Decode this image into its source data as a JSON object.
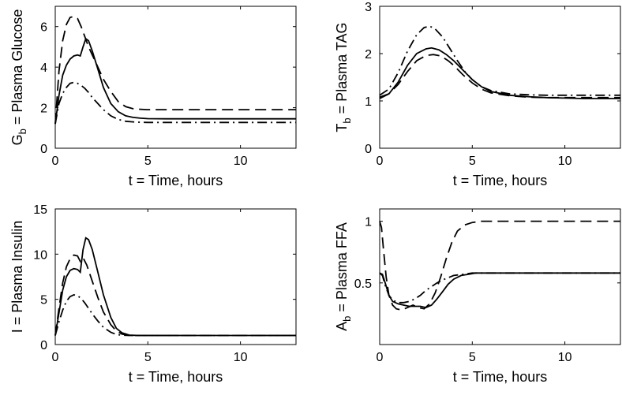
{
  "figure": {
    "description_free": true
  },
  "chart_data": [
    {
      "type": "line",
      "id": "glucose",
      "title": "",
      "xlabel": "t = Time, hours",
      "ylabel": "G",
      "ylabel_sub": "b",
      "ylabel_rest": " = Plasma Glucose",
      "xlim": [
        0,
        13
      ],
      "ylim": [
        0,
        7
      ],
      "xticks": [
        0,
        5,
        10
      ],
      "yticks": [
        0,
        2,
        4,
        6
      ],
      "series": [
        {
          "name": "solid",
          "style": "solid",
          "x": [
            0,
            0.2,
            0.4,
            0.6,
            0.8,
            1.0,
            1.2,
            1.35,
            1.5,
            1.65,
            1.8,
            2.0,
            2.3,
            2.6,
            3.0,
            3.4,
            3.8,
            4.2,
            4.6,
            5.0,
            6,
            8,
            10,
            12,
            13
          ],
          "y": [
            1.2,
            2.6,
            3.6,
            4.1,
            4.4,
            4.55,
            4.6,
            4.55,
            5.0,
            5.4,
            5.3,
            4.8,
            3.9,
            3.0,
            2.2,
            1.8,
            1.6,
            1.52,
            1.48,
            1.46,
            1.45,
            1.45,
            1.45,
            1.45,
            1.45
          ]
        },
        {
          "name": "dashed",
          "style": "dashed",
          "x": [
            0,
            0.2,
            0.4,
            0.6,
            0.8,
            1.0,
            1.2,
            1.4,
            1.6,
            1.8,
            2.0,
            2.3,
            2.6,
            3.0,
            3.4,
            3.8,
            4.2,
            4.6,
            5.0,
            6,
            8,
            10,
            12,
            13
          ],
          "y": [
            1.2,
            3.8,
            5.3,
            6.1,
            6.45,
            6.5,
            6.4,
            6.0,
            5.5,
            5.0,
            4.6,
            4.0,
            3.4,
            2.8,
            2.3,
            2.05,
            1.95,
            1.92,
            1.9,
            1.9,
            1.9,
            1.9,
            1.9,
            1.9
          ]
        },
        {
          "name": "dashdot",
          "style": "dashdot",
          "x": [
            0,
            0.2,
            0.4,
            0.6,
            0.8,
            1.0,
            1.2,
            1.4,
            1.6,
            1.8,
            2.0,
            2.3,
            2.6,
            3.0,
            3.4,
            3.8,
            4.2,
            4.6,
            5.0,
            6,
            8,
            10,
            12,
            13
          ],
          "y": [
            1.2,
            2.2,
            2.7,
            3.0,
            3.2,
            3.25,
            3.2,
            3.1,
            2.95,
            2.75,
            2.5,
            2.2,
            1.9,
            1.6,
            1.42,
            1.33,
            1.3,
            1.28,
            1.27,
            1.27,
            1.27,
            1.27,
            1.27,
            1.27
          ]
        }
      ]
    },
    {
      "type": "line",
      "id": "tag",
      "title": "",
      "xlabel": "t = Time, hours",
      "ylabel": "T",
      "ylabel_sub": "b",
      "ylabel_rest": " = Plasma TAG",
      "xlim": [
        0,
        13
      ],
      "ylim": [
        0,
        3
      ],
      "xticks": [
        0,
        5,
        10
      ],
      "yticks": [
        0,
        1,
        2,
        3
      ],
      "series": [
        {
          "name": "solid",
          "style": "solid",
          "x": [
            0,
            0.5,
            1.0,
            1.5,
            2.0,
            2.5,
            2.8,
            3.2,
            3.6,
            4.0,
            4.5,
            5.0,
            5.5,
            6.0,
            7,
            8,
            9,
            10,
            11,
            12,
            13
          ],
          "y": [
            1.05,
            1.15,
            1.4,
            1.75,
            2.0,
            2.1,
            2.12,
            2.08,
            1.98,
            1.85,
            1.65,
            1.45,
            1.3,
            1.2,
            1.12,
            1.09,
            1.07,
            1.06,
            1.05,
            1.05,
            1.05
          ]
        },
        {
          "name": "dashed",
          "style": "dashed",
          "x": [
            0,
            0.5,
            1.0,
            1.5,
            2.0,
            2.5,
            2.9,
            3.3,
            3.7,
            4.0,
            4.5,
            5.0,
            5.5,
            6.0,
            7,
            8,
            9,
            10,
            11,
            12,
            13
          ],
          "y": [
            1.08,
            1.15,
            1.35,
            1.62,
            1.85,
            1.96,
            1.98,
            1.95,
            1.85,
            1.75,
            1.55,
            1.38,
            1.25,
            1.17,
            1.11,
            1.08,
            1.07,
            1.07,
            1.07,
            1.07,
            1.07
          ]
        },
        {
          "name": "dashdot",
          "style": "dashdot",
          "x": [
            0,
            0.5,
            1.0,
            1.5,
            2.0,
            2.4,
            2.7,
            3.0,
            3.4,
            3.8,
            4.2,
            4.6,
            5.0,
            5.5,
            6.0,
            7,
            8,
            9,
            10,
            11,
            12,
            13
          ],
          "y": [
            1.12,
            1.25,
            1.6,
            2.05,
            2.4,
            2.55,
            2.58,
            2.52,
            2.35,
            2.1,
            1.85,
            1.62,
            1.45,
            1.3,
            1.22,
            1.15,
            1.13,
            1.12,
            1.12,
            1.12,
            1.12,
            1.12
          ]
        }
      ]
    },
    {
      "type": "line",
      "id": "insulin",
      "title": "",
      "xlabel": "t = Time, hours",
      "ylabel": "I",
      "ylabel_sub": "",
      "ylabel_rest": " = Plasma Insulin",
      "xlim": [
        0,
        13
      ],
      "ylim": [
        0,
        15
      ],
      "xticks": [
        0,
        5,
        10
      ],
      "yticks": [
        0,
        5,
        10,
        15
      ],
      "series": [
        {
          "name": "solid",
          "style": "solid",
          "x": [
            0,
            0.2,
            0.4,
            0.6,
            0.8,
            1.0,
            1.2,
            1.35,
            1.5,
            1.65,
            1.8,
            2.0,
            2.3,
            2.6,
            3.0,
            3.3,
            3.6,
            4.0,
            4.5,
            5.0,
            6,
            8,
            10,
            12,
            13
          ],
          "y": [
            1.0,
            3.5,
            6.0,
            7.5,
            8.2,
            8.4,
            8.3,
            8.0,
            10.5,
            11.8,
            11.6,
            10.5,
            8.0,
            5.5,
            3.0,
            1.8,
            1.3,
            1.05,
            1.0,
            1.0,
            1.0,
            1.0,
            1.0,
            1.0,
            1.0
          ]
        },
        {
          "name": "dashed",
          "style": "dashed",
          "x": [
            0,
            0.2,
            0.4,
            0.6,
            0.8,
            1.0,
            1.2,
            1.35,
            1.5,
            1.7,
            2.0,
            2.3,
            2.6,
            3.0,
            3.3,
            3.6,
            4.0,
            4.5,
            5.0,
            6,
            8,
            10,
            12,
            13
          ],
          "y": [
            1.0,
            4.0,
            6.8,
            8.6,
            9.5,
            9.9,
            9.8,
            9.2,
            9.6,
            8.8,
            7.0,
            5.2,
            3.6,
            2.2,
            1.5,
            1.15,
            1.02,
            1.0,
            1.0,
            1.0,
            1.0,
            1.0,
            1.0,
            1.0
          ]
        },
        {
          "name": "dashdot",
          "style": "dashdot",
          "x": [
            0,
            0.2,
            0.4,
            0.6,
            0.8,
            1.0,
            1.2,
            1.4,
            1.6,
            1.8,
            2.0,
            2.3,
            2.6,
            3.0,
            3.3,
            3.6,
            4.0,
            4.5,
            5.0,
            6,
            8,
            10,
            12,
            13
          ],
          "y": [
            1.0,
            2.5,
            3.8,
            4.8,
            5.3,
            5.5,
            5.4,
            5.1,
            4.6,
            4.0,
            3.4,
            2.6,
            1.9,
            1.35,
            1.12,
            1.03,
            1.0,
            1.0,
            1.0,
            1.0,
            1.0,
            1.0,
            1.0,
            1.0
          ]
        }
      ]
    },
    {
      "type": "line",
      "id": "ffa",
      "title": "",
      "xlabel": "t = Time, hours",
      "ylabel": "A",
      "ylabel_sub": "b",
      "ylabel_rest": " = Plasma FFA",
      "xlim": [
        0,
        13
      ],
      "ylim": [
        0,
        1.1
      ],
      "xticks": [
        0,
        5,
        10
      ],
      "yticks": [
        0.5,
        1
      ],
      "series": [
        {
          "name": "solid",
          "style": "solid",
          "x": [
            0,
            0.15,
            0.3,
            0.5,
            0.7,
            1.0,
            1.3,
            1.6,
            1.9,
            2.2,
            2.5,
            2.8,
            3.1,
            3.4,
            3.7,
            4.0,
            4.4,
            4.8,
            5.2,
            6,
            8,
            10,
            12,
            13
          ],
          "y": [
            0.58,
            0.57,
            0.5,
            0.4,
            0.35,
            0.33,
            0.32,
            0.31,
            0.31,
            0.31,
            0.3,
            0.32,
            0.37,
            0.43,
            0.49,
            0.53,
            0.56,
            0.57,
            0.58,
            0.58,
            0.58,
            0.58,
            0.58,
            0.58
          ]
        },
        {
          "name": "dashed",
          "style": "dashed",
          "x": [
            0,
            0.1,
            0.2,
            0.35,
            0.5,
            0.7,
            0.9,
            1.2,
            1.5,
            1.8,
            2.1,
            2.4,
            2.7,
            3.0,
            3.3,
            3.6,
            3.9,
            4.2,
            4.6,
            5.0,
            5.5,
            6,
            8,
            10,
            12,
            13
          ],
          "y": [
            1.0,
            0.95,
            0.78,
            0.55,
            0.4,
            0.32,
            0.29,
            0.28,
            0.3,
            0.32,
            0.3,
            0.29,
            0.33,
            0.42,
            0.55,
            0.7,
            0.83,
            0.92,
            0.97,
            0.99,
            1.0,
            1.0,
            1.0,
            1.0,
            1.0,
            1.0
          ]
        },
        {
          "name": "dashdot",
          "style": "dashdot",
          "x": [
            0,
            0.15,
            0.3,
            0.5,
            0.7,
            1.0,
            1.3,
            1.6,
            1.9,
            2.2,
            2.5,
            2.8,
            3.1,
            3.5,
            4.0,
            4.5,
            5.0,
            6,
            8,
            10,
            12,
            13
          ],
          "y": [
            0.58,
            0.56,
            0.48,
            0.4,
            0.36,
            0.34,
            0.34,
            0.35,
            0.37,
            0.4,
            0.44,
            0.47,
            0.5,
            0.53,
            0.56,
            0.57,
            0.58,
            0.58,
            0.58,
            0.58,
            0.58,
            0.58
          ]
        }
      ]
    }
  ]
}
